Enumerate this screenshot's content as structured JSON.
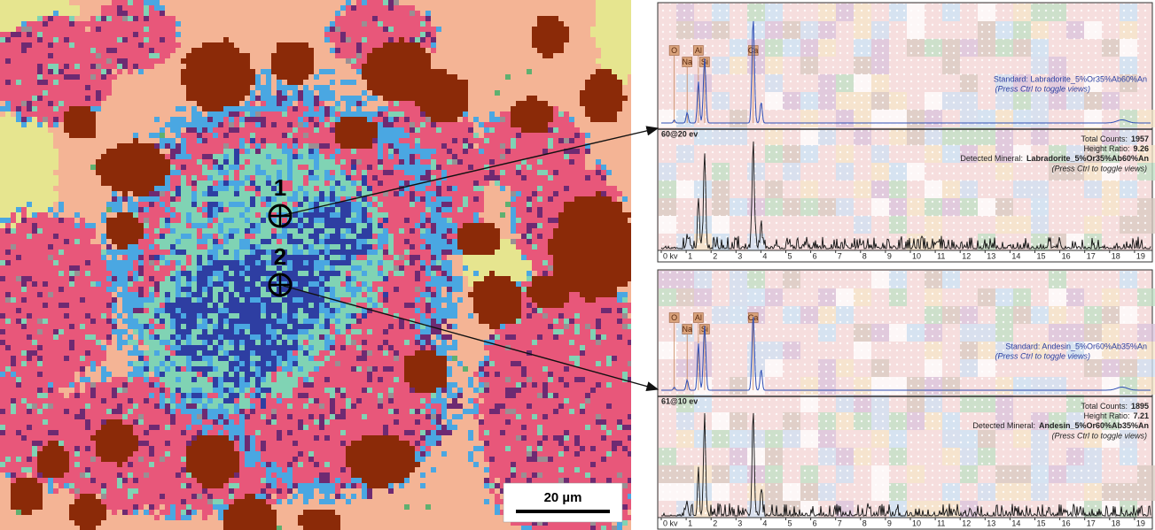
{
  "map": {
    "markers": [
      "1",
      "2"
    ],
    "scale_bar": "20 µm"
  },
  "axis_labels": [
    "0 kv",
    "1",
    "2",
    "3",
    "4",
    "5",
    "6",
    "7",
    "8",
    "9",
    "10",
    "11",
    "12",
    "13",
    "14",
    "15",
    "16",
    "17",
    "18",
    "19"
  ],
  "panels": [
    {
      "elements": [
        "O",
        "Na",
        "Al",
        "Si",
        "Ca"
      ],
      "standard": "Standard: Labradorite_5%Or35%Ab60%An",
      "toggle_hint": "(Press Ctrl to toggle views)",
      "point": "60@20 ev",
      "stats": [
        {
          "label": "Total Counts:",
          "value": 1957
        },
        {
          "label": "Height Ratio:",
          "value": 9.26
        },
        {
          "label": "Detected Mineral:",
          "value": "Labradorite_5%Or35%Ab60%An"
        }
      ],
      "measured_hint": "(Press Ctrl to toggle views)"
    },
    {
      "elements": [
        "O",
        "Na",
        "Al",
        "Si",
        "Ca"
      ],
      "standard": "Standard: Andesin_5%Or60%Ab35%An",
      "toggle_hint": "(Press Ctrl to toggle views)",
      "point": "61@10 ev",
      "stats": [
        {
          "label": "Total Counts:",
          "value": 1895
        },
        {
          "label": "Height Ratio:",
          "value": 7.21
        },
        {
          "label": "Detected Mineral:",
          "value": "Andesin_5%Or60%Ab35%An"
        }
      ],
      "measured_hint": "(Press Ctrl to toggle views)"
    }
  ]
}
